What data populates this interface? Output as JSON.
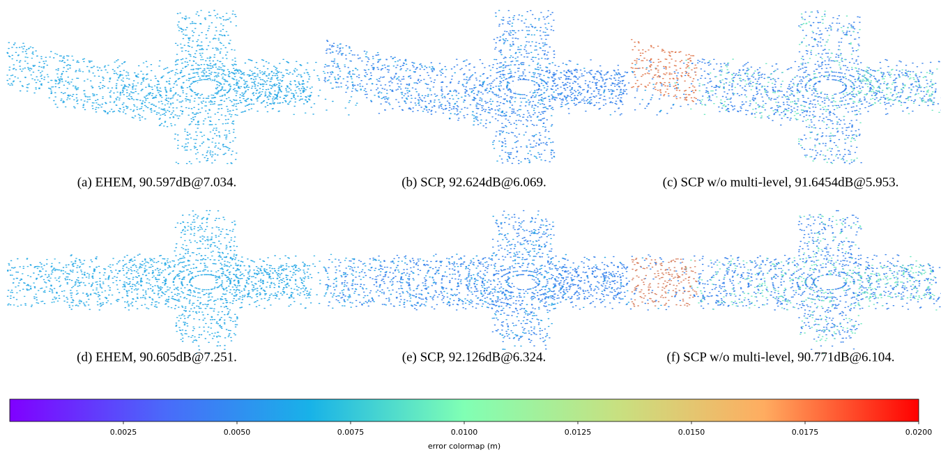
{
  "panels": [
    {
      "caption": "(a) EHEM, 90.597dB@7.034."
    },
    {
      "caption": "(b) SCP, 92.624dB@6.069."
    },
    {
      "caption": "(c) SCP w/o multi-level, 91.6454dB@5.953."
    },
    {
      "caption": "(d) EHEM, 90.605dB@7.251."
    },
    {
      "caption": "(e) SCP, 92.126dB@6.324."
    },
    {
      "caption": "(f) SCP w/o multi-level, 90.771dB@6.104."
    }
  ],
  "colorbar": {
    "label": "error colormap (m)",
    "lim": [
      0,
      0.02
    ],
    "ticks": [
      0.0025,
      {
        "value": 0.005,
        "label": "0.0050"
      },
      0.0075,
      {
        "value": 0.01,
        "label": "0.0100"
      },
      0.0125,
      {
        "value": 0.015,
        "label": "0.0150"
      },
      0.0175,
      {
        "value": 0.02,
        "label": "0.0200"
      }
    ]
  }
}
